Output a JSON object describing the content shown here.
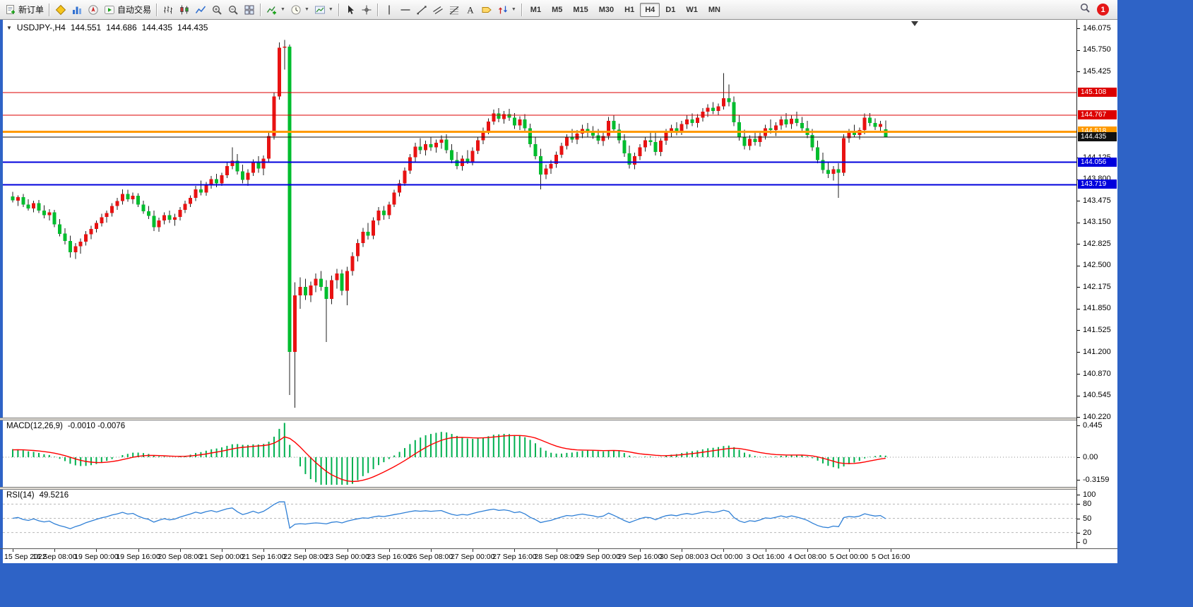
{
  "toolbar": {
    "dropdown_glyph": "▼",
    "items": [
      {
        "name": "new-order-button",
        "icon": "neworder",
        "label": "新订单"
      },
      {
        "sep": true
      },
      {
        "name": "metaeditor-button",
        "icon": "metaeditor"
      },
      {
        "name": "market-watch-button",
        "icon": "marketwatch"
      },
      {
        "name": "navigator-button",
        "icon": "navigator"
      },
      {
        "name": "auto-trading-button",
        "icon": "autotrading",
        "label": "自动交易"
      },
      {
        "sep": true
      },
      {
        "name": "bar-chart-button",
        "icon": "chartbars"
      },
      {
        "name": "candlestick-chart-button",
        "icon": "chartcandles"
      },
      {
        "name": "line-chart-button",
        "icon": "chartline"
      },
      {
        "name": "zoom-in-button",
        "icon": "zoomin"
      },
      {
        "name": "zoom-out-button",
        "icon": "zoomout"
      },
      {
        "name": "tile-windows-button",
        "icon": "tile"
      },
      {
        "sep": true
      },
      {
        "name": "indicators-button",
        "icon": "indicators",
        "dropdown": true
      },
      {
        "name": "periods-button",
        "icon": "clock",
        "dropdown": true
      },
      {
        "name": "templates-button",
        "icon": "template",
        "dropdown": true
      },
      {
        "sep": true
      },
      {
        "name": "cursor-button",
        "icon": "cursor"
      },
      {
        "name": "crosshair-button",
        "icon": "crosshair"
      },
      {
        "sep": true
      },
      {
        "name": "vertical-line-button",
        "icon": "vline"
      },
      {
        "name": "horizontal-line-button",
        "icon": "hline"
      },
      {
        "name": "trendline-button",
        "icon": "trend"
      },
      {
        "name": "equidistant-channel-button",
        "icon": "channel"
      },
      {
        "name": "fibonacci-button",
        "icon": "fibo"
      },
      {
        "name": "text-button",
        "icon": "textA"
      },
      {
        "name": "text-label-button",
        "icon": "labeltag"
      },
      {
        "name": "arrows-button",
        "icon": "arrows",
        "dropdown": true
      },
      {
        "sep": true
      }
    ],
    "timeframes": [
      "M1",
      "M5",
      "M15",
      "M30",
      "H1",
      "H4",
      "D1",
      "W1",
      "MN"
    ],
    "active_timeframe": "H4",
    "notification_count": "1"
  },
  "chart": {
    "collapse_arrow": "▼",
    "symbol": "USDJPY-,H4",
    "ohlc": {
      "open": "144.551",
      "high": "144.686",
      "low": "144.435",
      "close": "144.435"
    },
    "levels": [
      {
        "price": 145.108,
        "label": "145.108",
        "color": "#dd0000",
        "width": 1
      },
      {
        "price": 144.767,
        "label": "144.767",
        "color": "#dd0000",
        "width": 1
      },
      {
        "price": 144.518,
        "label": "144.518",
        "color": "#ff9a00",
        "width": 3
      },
      {
        "price": 144.056,
        "label": "144.056",
        "color": "#0000dd",
        "width": 2
      },
      {
        "price": 143.719,
        "label": "143.719",
        "color": "#0000dd",
        "width": 2
      },
      {
        "price": 144.435,
        "label": "144.435",
        "color": "#111111",
        "width": 1
      }
    ],
    "price_ticks": [
      "146.075",
      "145.750",
      "145.425",
      "144.125",
      "143.800",
      "143.475",
      "143.150",
      "142.825",
      "142.500",
      "142.175",
      "141.850",
      "141.525",
      "141.200",
      "140.870",
      "140.545",
      "140.220"
    ]
  },
  "macd": {
    "label": "MACD(12,26,9)",
    "values": "-0.0010 -0.0076",
    "params": [
      12,
      26,
      9
    ],
    "scale": [
      {
        "text": "0.445",
        "v": 0.445
      },
      {
        "text": "0.00",
        "v": 0
      },
      {
        "text": "-0.3159",
        "v": -0.3159
      }
    ]
  },
  "rsi": {
    "label": "RSI(14)",
    "value": "49.5216",
    "params": [
      14
    ],
    "levels": [
      80,
      50,
      20
    ],
    "scale": [
      {
        "text": "100",
        "v": 100
      },
      {
        "text": "80",
        "v": 80
      },
      {
        "text": "50",
        "v": 50
      },
      {
        "text": "20",
        "v": 20
      },
      {
        "text": "0",
        "v": 0
      }
    ]
  },
  "chart_data": {
    "type": "candlestick",
    "symbol": "USDJPY",
    "timeframe": "H4",
    "ylim": [
      140.22,
      146.075
    ],
    "candles_per_label": 8,
    "colors": {
      "bull": "#e81212",
      "bear": "#00bd2e",
      "wick": "#202020",
      "macd_hist": "#00b050",
      "macd_signal": "#ff0000",
      "rsi_line": "#2e7fd6",
      "level_dash": "#b8b8b8"
    },
    "x_labels": [
      "15 Sep 2022",
      "16 Sep 08:00",
      "19 Sep 00:00",
      "19 Sep 16:00",
      "20 Sep 08:00",
      "21 Sep 00:00",
      "21 Sep 16:00",
      "22 Sep 08:00",
      "23 Sep 00:00",
      "23 Sep 16:00",
      "26 Sep 08:00",
      "27 Sep 00:00",
      "27 Sep 16:00",
      "28 Sep 08:00",
      "29 Sep 00:00",
      "29 Sep 16:00",
      "30 Sep 08:00",
      "3 Oct 00:00",
      "3 Oct 16:00",
      "4 Oct 08:00",
      "5 Oct 00:00",
      "5 Oct 16:00"
    ],
    "candles": [
      [
        143.54,
        143.61,
        143.45,
        143.48
      ],
      [
        143.48,
        143.56,
        143.4,
        143.53
      ],
      [
        143.53,
        143.58,
        143.38,
        143.42
      ],
      [
        143.42,
        143.5,
        143.33,
        143.36
      ],
      [
        143.36,
        143.48,
        143.3,
        143.44
      ],
      [
        143.44,
        143.49,
        143.29,
        143.33
      ],
      [
        143.33,
        143.41,
        143.21,
        143.26
      ],
      [
        143.26,
        143.35,
        143.18,
        143.3
      ],
      [
        143.3,
        143.34,
        143.08,
        143.12
      ],
      [
        143.12,
        143.2,
        142.94,
        142.98
      ],
      [
        142.98,
        143.06,
        142.82,
        142.87
      ],
      [
        142.87,
        142.95,
        142.62,
        142.7
      ],
      [
        142.7,
        142.84,
        142.6,
        142.79
      ],
      [
        142.79,
        142.91,
        142.68,
        142.86
      ],
      [
        142.86,
        143.02,
        142.8,
        142.97
      ],
      [
        142.97,
        143.1,
        142.9,
        143.05
      ],
      [
        143.05,
        143.18,
        143.0,
        143.14
      ],
      [
        143.14,
        143.28,
        143.09,
        143.23
      ],
      [
        143.23,
        143.33,
        143.15,
        143.29
      ],
      [
        143.29,
        143.44,
        143.24,
        143.4
      ],
      [
        143.4,
        143.52,
        143.34,
        143.47
      ],
      [
        143.47,
        143.65,
        143.42,
        143.58
      ],
      [
        143.58,
        143.64,
        143.46,
        143.5
      ],
      [
        143.5,
        143.6,
        143.43,
        143.55
      ],
      [
        143.55,
        143.59,
        143.38,
        143.42
      ],
      [
        143.42,
        143.48,
        143.28,
        143.32
      ],
      [
        143.32,
        143.4,
        143.2,
        143.25
      ],
      [
        143.25,
        143.33,
        143.02,
        143.08
      ],
      [
        143.08,
        143.22,
        143.01,
        143.18
      ],
      [
        143.18,
        143.3,
        143.12,
        143.26
      ],
      [
        143.26,
        143.33,
        143.14,
        143.19
      ],
      [
        143.19,
        143.28,
        143.1,
        143.23
      ],
      [
        143.23,
        143.38,
        143.18,
        143.34
      ],
      [
        143.34,
        143.48,
        143.29,
        143.43
      ],
      [
        143.43,
        143.56,
        143.38,
        143.52
      ],
      [
        143.52,
        143.7,
        143.47,
        143.65
      ],
      [
        143.65,
        143.78,
        143.56,
        143.6
      ],
      [
        143.6,
        143.76,
        143.55,
        143.72
      ],
      [
        143.72,
        143.85,
        143.66,
        143.8
      ],
      [
        143.8,
        143.88,
        143.68,
        143.74
      ],
      [
        143.74,
        143.9,
        143.7,
        143.86
      ],
      [
        143.86,
        144.06,
        143.82,
        144.0
      ],
      [
        144.0,
        144.28,
        143.95,
        144.08
      ],
      [
        144.08,
        144.18,
        143.87,
        143.92
      ],
      [
        143.92,
        144.02,
        143.74,
        143.79
      ],
      [
        143.79,
        143.95,
        143.7,
        143.9
      ],
      [
        143.9,
        144.1,
        143.85,
        144.05
      ],
      [
        144.05,
        144.15,
        143.9,
        143.96
      ],
      [
        143.96,
        144.16,
        143.86,
        144.11
      ],
      [
        144.11,
        144.5,
        144.06,
        144.45
      ],
      [
        144.45,
        145.1,
        144.4,
        145.05
      ],
      [
        145.05,
        145.86,
        145.0,
        145.78
      ],
      [
        145.78,
        145.9,
        145.45,
        145.8
      ],
      [
        145.8,
        145.83,
        140.55,
        141.2
      ],
      [
        141.2,
        142.25,
        140.36,
        142.05
      ],
      [
        142.05,
        142.32,
        141.85,
        142.18
      ],
      [
        142.18,
        142.3,
        141.98,
        142.05
      ],
      [
        142.05,
        142.26,
        141.95,
        142.2
      ],
      [
        142.2,
        142.38,
        142.1,
        142.3
      ],
      [
        142.3,
        142.42,
        142.12,
        142.18
      ],
      [
        142.18,
        142.28,
        141.35,
        142.0
      ],
      [
        142.0,
        142.35,
        141.92,
        142.28
      ],
      [
        142.28,
        142.45,
        142.15,
        142.38
      ],
      [
        142.38,
        142.44,
        142.05,
        142.12
      ],
      [
        142.12,
        142.48,
        141.9,
        142.42
      ],
      [
        142.42,
        142.7,
        142.35,
        142.64
      ],
      [
        142.64,
        142.9,
        142.56,
        142.84
      ],
      [
        142.84,
        143.07,
        142.78,
        143.01
      ],
      [
        143.01,
        143.14,
        142.89,
        142.95
      ],
      [
        142.95,
        143.23,
        142.9,
        143.18
      ],
      [
        143.18,
        143.38,
        143.11,
        143.33
      ],
      [
        143.33,
        143.4,
        143.19,
        143.26
      ],
      [
        143.26,
        143.46,
        143.2,
        143.42
      ],
      [
        143.42,
        143.64,
        143.38,
        143.6
      ],
      [
        143.6,
        143.79,
        143.54,
        143.74
      ],
      [
        143.74,
        143.98,
        143.7,
        143.93
      ],
      [
        143.93,
        144.18,
        143.88,
        144.13
      ],
      [
        144.13,
        144.35,
        144.07,
        144.29
      ],
      [
        144.29,
        144.42,
        144.18,
        144.24
      ],
      [
        144.24,
        144.38,
        144.16,
        144.33
      ],
      [
        144.33,
        144.44,
        144.23,
        144.28
      ],
      [
        144.28,
        144.4,
        144.2,
        144.35
      ],
      [
        144.35,
        144.46,
        144.26,
        144.4
      ],
      [
        144.4,
        144.48,
        144.19,
        144.24
      ],
      [
        144.24,
        144.33,
        144.04,
        144.09
      ],
      [
        144.09,
        144.21,
        143.95,
        144.0
      ],
      [
        144.0,
        144.16,
        143.93,
        144.11
      ],
      [
        144.11,
        144.24,
        144.03,
        144.06
      ],
      [
        144.06,
        144.28,
        144.01,
        144.23
      ],
      [
        144.23,
        144.44,
        144.18,
        144.39
      ],
      [
        144.39,
        144.58,
        144.33,
        144.53
      ],
      [
        144.53,
        144.72,
        144.48,
        144.67
      ],
      [
        144.67,
        144.85,
        144.62,
        144.79
      ],
      [
        144.79,
        144.87,
        144.66,
        144.71
      ],
      [
        144.71,
        144.83,
        144.64,
        144.78
      ],
      [
        144.78,
        144.86,
        144.68,
        144.73
      ],
      [
        144.73,
        144.8,
        144.56,
        144.61
      ],
      [
        144.61,
        144.75,
        144.54,
        144.7
      ],
      [
        144.7,
        144.78,
        144.52,
        144.57
      ],
      [
        144.57,
        144.64,
        144.28,
        144.33
      ],
      [
        144.33,
        144.43,
        144.1,
        144.15
      ],
      [
        144.15,
        144.26,
        143.65,
        143.87
      ],
      [
        143.87,
        144.02,
        143.8,
        143.96
      ],
      [
        143.96,
        144.09,
        143.88,
        144.03
      ],
      [
        144.03,
        144.22,
        143.97,
        144.17
      ],
      [
        144.17,
        144.35,
        144.12,
        144.3
      ],
      [
        144.3,
        144.48,
        144.25,
        144.43
      ],
      [
        144.43,
        144.56,
        144.35,
        144.4
      ],
      [
        144.4,
        144.54,
        144.33,
        144.49
      ],
      [
        144.49,
        144.62,
        144.42,
        144.56
      ],
      [
        144.56,
        144.65,
        144.44,
        144.5
      ],
      [
        144.5,
        144.6,
        144.41,
        144.46
      ],
      [
        144.46,
        144.56,
        144.33,
        144.38
      ],
      [
        144.38,
        144.5,
        144.3,
        144.45
      ],
      [
        144.45,
        144.74,
        144.4,
        144.68
      ],
      [
        144.68,
        144.76,
        144.5,
        144.55
      ],
      [
        144.55,
        144.64,
        144.34,
        144.39
      ],
      [
        144.39,
        144.48,
        144.14,
        144.19
      ],
      [
        144.19,
        144.31,
        143.96,
        144.02
      ],
      [
        144.02,
        144.2,
        143.95,
        144.15
      ],
      [
        144.15,
        144.33,
        144.09,
        144.28
      ],
      [
        144.28,
        144.44,
        144.22,
        144.39
      ],
      [
        144.39,
        144.52,
        144.31,
        144.36
      ],
      [
        144.36,
        144.5,
        144.16,
        144.21
      ],
      [
        144.21,
        144.42,
        144.15,
        144.38
      ],
      [
        144.38,
        144.56,
        144.32,
        144.51
      ],
      [
        144.51,
        144.62,
        144.43,
        144.57
      ],
      [
        144.57,
        144.66,
        144.46,
        144.52
      ],
      [
        144.52,
        144.68,
        144.47,
        144.63
      ],
      [
        144.63,
        144.76,
        144.56,
        144.7
      ],
      [
        144.7,
        144.79,
        144.6,
        144.65
      ],
      [
        144.65,
        144.78,
        144.58,
        144.73
      ],
      [
        144.73,
        144.87,
        144.67,
        144.82
      ],
      [
        144.82,
        144.93,
        144.74,
        144.88
      ],
      [
        144.88,
        144.96,
        144.78,
        144.83
      ],
      [
        144.83,
        144.94,
        144.76,
        144.9
      ],
      [
        144.9,
        145.4,
        144.85,
        145.02
      ],
      [
        145.02,
        145.23,
        144.9,
        144.96
      ],
      [
        144.96,
        145.05,
        144.6,
        144.66
      ],
      [
        144.66,
        144.76,
        144.38,
        144.43
      ],
      [
        144.43,
        144.55,
        144.25,
        144.3
      ],
      [
        144.3,
        144.46,
        144.24,
        144.41
      ],
      [
        144.41,
        144.52,
        144.31,
        144.36
      ],
      [
        144.36,
        144.5,
        144.29,
        144.45
      ],
      [
        144.45,
        144.62,
        144.4,
        144.57
      ],
      [
        144.57,
        144.7,
        144.49,
        144.54
      ],
      [
        144.54,
        144.66,
        144.45,
        144.61
      ],
      [
        144.61,
        144.75,
        144.55,
        144.7
      ],
      [
        144.7,
        144.8,
        144.58,
        144.63
      ],
      [
        144.63,
        144.76,
        144.56,
        144.71
      ],
      [
        144.71,
        144.82,
        144.6,
        144.65
      ],
      [
        144.65,
        144.74,
        144.52,
        144.57
      ],
      [
        144.57,
        144.68,
        144.42,
        144.47
      ],
      [
        144.47,
        144.56,
        144.23,
        144.28
      ],
      [
        144.28,
        144.38,
        144.04,
        144.09
      ],
      [
        144.09,
        144.2,
        143.89,
        143.94
      ],
      [
        143.94,
        144.06,
        143.82,
        143.88
      ],
      [
        143.88,
        144.0,
        143.78,
        143.95
      ],
      [
        143.95,
        144.04,
        143.52,
        143.9
      ],
      [
        143.9,
        144.48,
        143.85,
        144.42
      ],
      [
        144.42,
        144.56,
        144.35,
        144.51
      ],
      [
        144.51,
        144.62,
        144.43,
        144.47
      ],
      [
        144.47,
        144.58,
        144.4,
        144.54
      ],
      [
        144.54,
        144.79,
        144.48,
        144.73
      ],
      [
        144.73,
        144.8,
        144.6,
        144.65
      ],
      [
        144.65,
        144.72,
        144.54,
        144.59
      ],
      [
        144.59,
        144.68,
        144.5,
        144.63
      ],
      [
        144.551,
        144.686,
        144.435,
        144.435
      ]
    ]
  }
}
